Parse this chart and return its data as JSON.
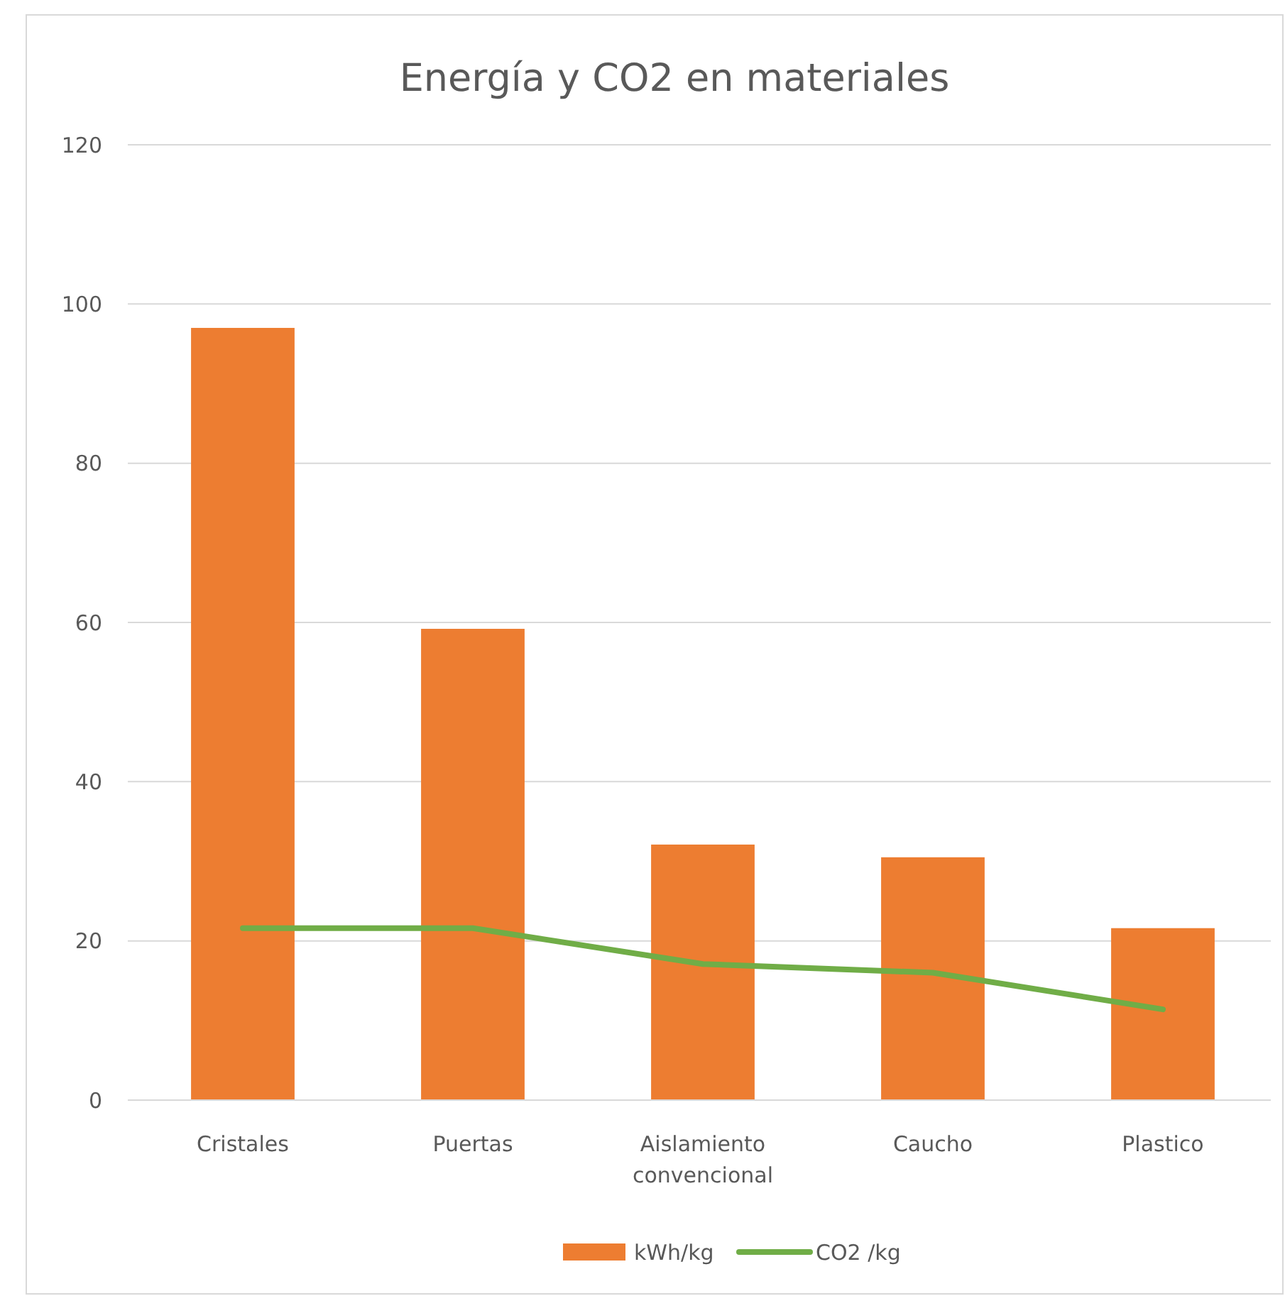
{
  "chart_data": {
    "type": "bar",
    "title": "Energía y CO2 en materiales",
    "categories": [
      "Cristales",
      "Puertas",
      "Aislamiento convencional",
      "Caucho",
      "Plastico"
    ],
    "series": [
      {
        "name": "kWh/kg",
        "color": "#ed7d31",
        "values": [
          97,
          59.2,
          32.1,
          30.5,
          21.6
        ]
      },
      {
        "name": "CO2 /kg",
        "type": "line",
        "color": "#70ad47",
        "values": [
          21.6,
          21.6,
          17.1,
          16,
          11.4
        ]
      }
    ],
    "ylim": [
      0,
      120
    ],
    "yticks": [
      0,
      20,
      40,
      60,
      80,
      100,
      120
    ],
    "grid": "y",
    "legend": "bottom",
    "marker": "none"
  }
}
